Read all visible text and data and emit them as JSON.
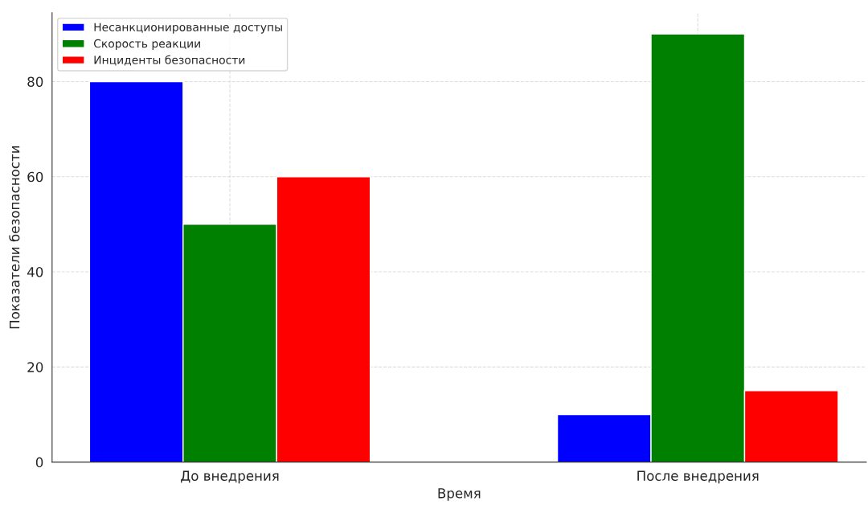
{
  "chart_data": {
    "type": "bar",
    "xlabel": "Время",
    "ylabel": "Показатели безопасности",
    "categories": [
      "До внедрения",
      "После внедрения"
    ],
    "series": [
      {
        "name": "Несанкционированные доступы",
        "color": "#0000ff",
        "values": [
          80,
          10
        ]
      },
      {
        "name": "Скорость реакции",
        "color": "#008000",
        "values": [
          50,
          90
        ]
      },
      {
        "name": "Инциденты безопасности",
        "color": "#ff0000",
        "values": [
          60,
          15
        ]
      }
    ],
    "ylim": [
      0,
      94.5
    ],
    "yticks": [
      0,
      20,
      40,
      60,
      80
    ],
    "grid": true,
    "legend": "top left"
  }
}
